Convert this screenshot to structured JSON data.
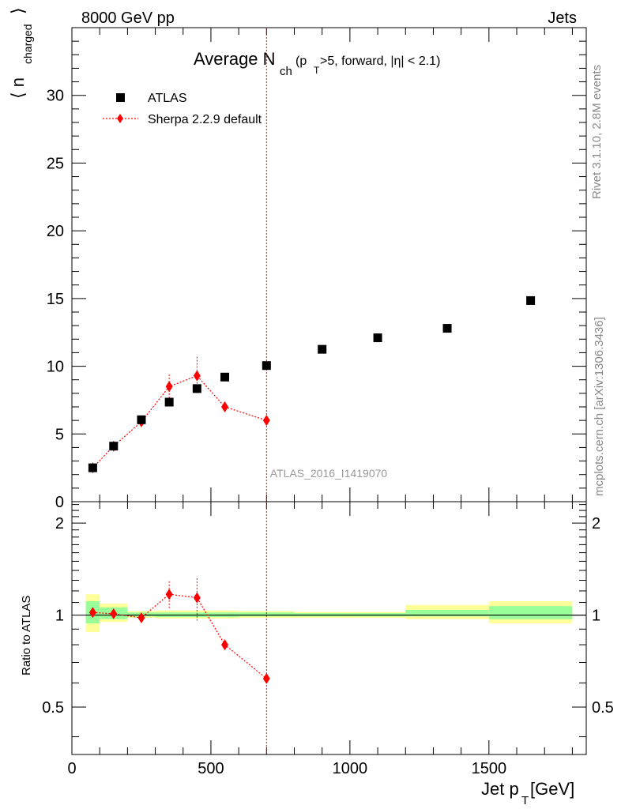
{
  "header": {
    "left": "8000 GeV pp",
    "right": "Jets"
  },
  "side_labels": {
    "rivet": "Rivet 3.1.10,  2.8M events",
    "mcplots": "mcplots.cern.ch [arXiv:1306.3436]"
  },
  "chart_data": [
    {
      "type": "scatter",
      "panel": "main",
      "title_main": "Average N",
      "title_sub": "ch",
      "title_rest_1": " (p",
      "title_rest_sub": "T",
      "title_rest_2": ">5, forward, |η| < 2.1)",
      "ylabel": "⟨ n",
      "ylabel_sub": "charged",
      "ylabel_close": "⟩",
      "analysis_label": "ATLAS_2016_I1419070",
      "xlim": [
        0,
        1850
      ],
      "ylim": [
        0,
        35
      ],
      "y_ticks": [
        0,
        5,
        10,
        15,
        20,
        25,
        30
      ],
      "legend_position": "top-left",
      "series": [
        {
          "name": "ATLAS",
          "color": "#000000",
          "marker": "square",
          "x": [
            75,
            150,
            250,
            350,
            450,
            550,
            700,
            900,
            1100,
            1350,
            1650
          ],
          "y": [
            2.5,
            4.1,
            6.05,
            7.35,
            8.35,
            9.2,
            10.05,
            11.25,
            12.1,
            12.8,
            14.85
          ]
        },
        {
          "name": "Sherpa 2.2.9 default",
          "color": "#ff0000",
          "marker": "diamond",
          "line": "dotted",
          "x": [
            75,
            150,
            250,
            350,
            450,
            550,
            700
          ],
          "y": [
            2.5,
            4.1,
            5.9,
            8.5,
            9.3,
            7.0,
            6.0
          ],
          "yerr": [
            0.1,
            0.1,
            0.15,
            0.9,
            1.4,
            0.1,
            0.1
          ]
        }
      ],
      "vertical_line_x": 700
    },
    {
      "type": "scatter",
      "panel": "ratio",
      "ylabel": "Ratio to ATLAS",
      "xlabel": "Jet p",
      "xlabel_sub": "T",
      "xlabel_unit": " [GeV]",
      "xlim": [
        0,
        1850
      ],
      "ylim": [
        0.35,
        2.35
      ],
      "x_ticks": [
        0,
        500,
        1000,
        1500
      ],
      "y_ticks": [
        0.5,
        1,
        2
      ],
      "bands": [
        {
          "x0": 50,
          "x1": 100,
          "yellow": [
            0.88,
            1.17
          ],
          "green": [
            0.94,
            1.11
          ]
        },
        {
          "x0": 100,
          "x1": 200,
          "yellow": [
            0.95,
            1.09
          ],
          "green": [
            0.97,
            1.06
          ]
        },
        {
          "x0": 200,
          "x1": 300,
          "yellow": [
            0.98,
            1.03
          ],
          "green": [
            0.99,
            1.02
          ]
        },
        {
          "x0": 300,
          "x1": 400,
          "yellow": [
            0.975,
            1.035
          ],
          "green": [
            0.985,
            1.02
          ]
        },
        {
          "x0": 400,
          "x1": 500,
          "yellow": [
            0.975,
            1.035
          ],
          "green": [
            0.985,
            1.02
          ]
        },
        {
          "x0": 500,
          "x1": 600,
          "yellow": [
            0.975,
            1.035
          ],
          "green": [
            0.985,
            1.02
          ]
        },
        {
          "x0": 600,
          "x1": 800,
          "yellow": [
            0.98,
            1.03
          ],
          "green": [
            0.99,
            1.02
          ]
        },
        {
          "x0": 800,
          "x1": 1000,
          "yellow": [
            0.98,
            1.025
          ],
          "green": [
            0.99,
            1.015
          ]
        },
        {
          "x0": 1000,
          "x1": 1200,
          "yellow": [
            0.98,
            1.025
          ],
          "green": [
            0.99,
            1.015
          ]
        },
        {
          "x0": 1200,
          "x1": 1500,
          "yellow": [
            0.97,
            1.08
          ],
          "green": [
            0.99,
            1.04
          ]
        },
        {
          "x0": 1500,
          "x1": 1800,
          "yellow": [
            0.94,
            1.11
          ],
          "green": [
            0.97,
            1.07
          ]
        }
      ],
      "ratio_series": {
        "name": "Sherpa 2.2.9 default",
        "color": "#ff0000",
        "x": [
          75,
          150,
          250,
          350,
          450,
          550,
          700
        ],
        "y": [
          1.02,
          1.01,
          0.98,
          1.17,
          1.14,
          0.8,
          0.62
        ],
        "yerr": [
          0.02,
          0.02,
          0.02,
          0.12,
          0.18,
          0.01,
          0.01
        ]
      },
      "vertical_line_x": 700
    }
  ]
}
